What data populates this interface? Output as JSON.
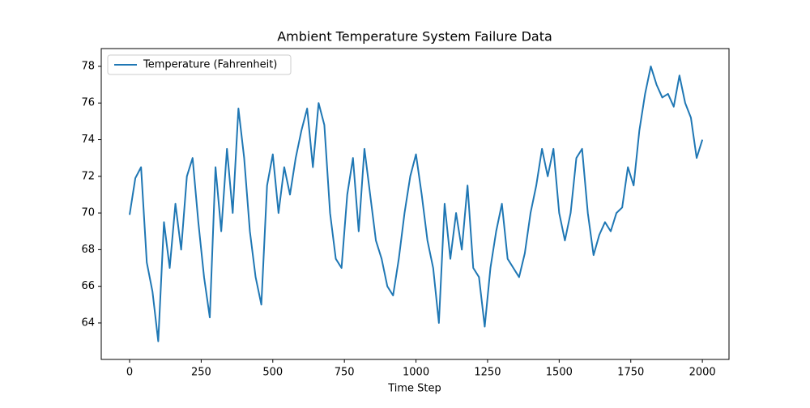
{
  "chart_data": {
    "type": "line",
    "title": "Ambient Temperature System Failure Data",
    "xlabel": "Time Step",
    "x": [
      0,
      20,
      40,
      60,
      80,
      100,
      120,
      140,
      160,
      180,
      200,
      220,
      240,
      260,
      280,
      300,
      320,
      340,
      360,
      380,
      400,
      420,
      440,
      460,
      480,
      500,
      520,
      540,
      560,
      580,
      600,
      620,
      640,
      660,
      680,
      700,
      720,
      740,
      760,
      780,
      800,
      820,
      840,
      860,
      880,
      900,
      920,
      940,
      960,
      980,
      1000,
      1020,
      1040,
      1060,
      1080,
      1100,
      1120,
      1140,
      1160,
      1180,
      1200,
      1220,
      1240,
      1260,
      1280,
      1300,
      1320,
      1340,
      1360,
      1380,
      1400,
      1420,
      1440,
      1460,
      1480,
      1500,
      1520,
      1540,
      1560,
      1580,
      1600,
      1620,
      1640,
      1660,
      1680,
      1700,
      1720,
      1740,
      1760,
      1780,
      1800,
      1820,
      1840,
      1860,
      1880,
      1900,
      1920,
      1940,
      1960,
      1980,
      2000
    ],
    "series": [
      {
        "name": "Temperature (Fahrenheit)",
        "color": "#1f77b4",
        "values": [
          69.9,
          71.9,
          72.5,
          67.3,
          65.7,
          63.0,
          69.5,
          67.0,
          70.5,
          68.0,
          72.0,
          73.0,
          69.5,
          66.5,
          64.3,
          72.5,
          69.0,
          73.5,
          70.0,
          75.7,
          73.0,
          69.0,
          66.5,
          65.0,
          71.5,
          73.2,
          70.0,
          72.5,
          71.0,
          73.0,
          74.5,
          75.7,
          72.5,
          76.0,
          74.8,
          70.0,
          67.5,
          67.0,
          71.0,
          73.0,
          69.0,
          73.5,
          71.0,
          68.5,
          67.5,
          66.0,
          65.5,
          67.5,
          70.0,
          72.0,
          73.2,
          71.0,
          68.5,
          67.0,
          64.0,
          70.5,
          67.5,
          70.0,
          68.0,
          71.5,
          67.0,
          66.5,
          63.8,
          67.0,
          69.0,
          70.5,
          67.5,
          67.0,
          66.5,
          67.8,
          70.0,
          71.5,
          73.5,
          72.0,
          73.5,
          70.0,
          68.5,
          70.0,
          73.0,
          73.5,
          70.0,
          67.7,
          68.8,
          69.5,
          69.0,
          70.0,
          70.3,
          72.5,
          71.5,
          74.5,
          76.5,
          78.0,
          77.0,
          76.3,
          76.5,
          75.8,
          77.5,
          76.0,
          75.2,
          73.0,
          74.0
        ]
      }
    ],
    "xlim": [
      -99,
      2093
    ],
    "xticks": [
      0,
      250,
      500,
      750,
      1000,
      1250,
      1500,
      1750,
      2000
    ],
    "ylim": [
      62.01,
      78.97
    ],
    "yticks": [
      64,
      66,
      68,
      70,
      72,
      74,
      76,
      78
    ],
    "legend": "upper left"
  }
}
